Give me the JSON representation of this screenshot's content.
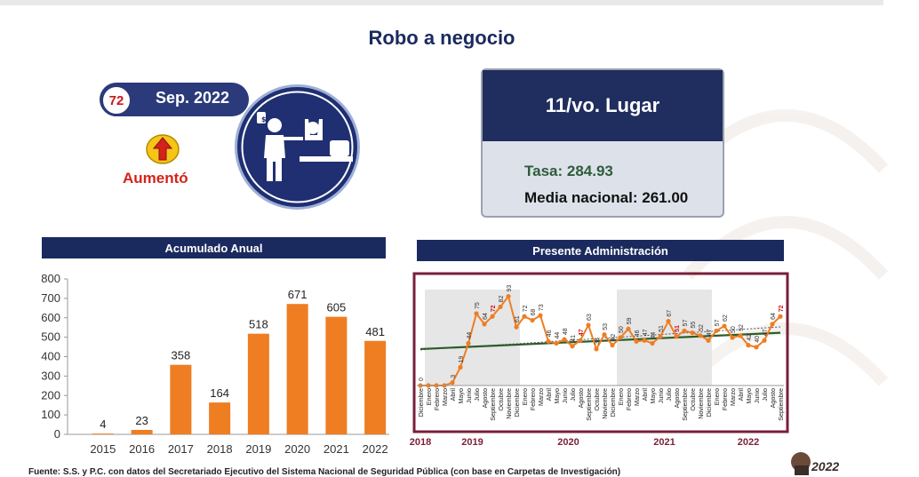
{
  "page": {
    "title": "Robo a negocio",
    "period_badge": {
      "rank_number": "72",
      "date_label": "Sep. 2022"
    },
    "trend_label": "Aumentó",
    "rank_card": {
      "position": "11/vo. Lugar",
      "rate": "Tasa: 284.93",
      "national_mean": "Media nacional: 261.00"
    },
    "footer": "Fuente: S.S. y P.C. con datos del Secretariado Ejecutivo del Sistema Nacional de Seguridad Pública (con base en Carpetas de Investigación)",
    "logo_text": "2022",
    "colors": {
      "navy": "#1b2a5e",
      "orange": "#ef7d22",
      "red": "#c8161d",
      "green": "#2e5c3a",
      "maroon": "#7a1f3a"
    }
  },
  "chart_data": [
    {
      "type": "bar",
      "title": "Acumulado Anual",
      "categories": [
        "2015",
        "2016",
        "2017",
        "2018",
        "2019",
        "2020",
        "2021",
        "2022"
      ],
      "values": [
        4,
        23,
        358,
        164,
        518,
        671,
        605,
        481
      ],
      "ylim": [
        0,
        800
      ],
      "yticks": [
        0,
        100,
        200,
        300,
        400,
        500,
        600,
        700,
        800
      ],
      "grid": false,
      "color": "#ef7d22"
    },
    {
      "type": "line",
      "title": "Presente Administración",
      "months": [
        "Diciembre",
        "Enero",
        "Febrero",
        "Marzo",
        "Abril",
        "Mayo",
        "Junio",
        "Julio",
        "Agosto",
        "Septiembre",
        "Octubre",
        "Noviembre",
        "Diciembre",
        "Enero",
        "Febrero",
        "Marzo",
        "Abril",
        "Mayo",
        "Junio",
        "Julio",
        "Agosto",
        "Septiembre",
        "Octubre",
        "Noviembre",
        "Diciembre",
        "Enero",
        "Febrero",
        "Marzo",
        "Abril",
        "Mayo",
        "Junio",
        "Julio",
        "Agosto",
        "Septiembre",
        "Octubre",
        "Noviembre",
        "Diciembre",
        "Enero",
        "Febrero",
        "Marzo",
        "Abril",
        "Mayo",
        "Junio",
        "Julio",
        "Agosto",
        "Septiembre"
      ],
      "values": [
        0,
        0,
        0,
        0,
        3,
        19,
        44,
        75,
        64,
        72,
        82,
        93,
        61,
        72,
        68,
        73,
        46,
        44,
        48,
        41,
        47,
        63,
        38,
        53,
        42,
        50,
        59,
        46,
        47,
        44,
        51,
        67,
        51,
        57,
        55,
        52,
        47,
        57,
        62,
        50,
        52,
        42,
        40,
        47,
        64,
        72
      ],
      "value_labels": [
        "0",
        "",
        "",
        "",
        "3",
        "19",
        "44",
        "75",
        "64",
        "72",
        "82",
        "93",
        "61",
        "72",
        "68",
        "73",
        "46",
        "44",
        "48",
        "41",
        "47",
        "63",
        "38",
        "53",
        "42",
        "50",
        "59",
        "46",
        "47",
        "44",
        "51",
        "67",
        "51",
        "57",
        "55",
        "52",
        "47",
        "57",
        "62",
        "50",
        "52",
        "42",
        "40",
        "47",
        "64",
        "72"
      ],
      "highlight_indices": [
        9,
        20,
        32,
        45
      ],
      "year_labels": [
        {
          "label": "2018",
          "start": 0,
          "end": 0
        },
        {
          "label": "2019",
          "start": 1,
          "end": 12
        },
        {
          "label": "2020",
          "start": 13,
          "end": 24
        },
        {
          "label": "2021",
          "start": 25,
          "end": 36
        },
        {
          "label": "2022",
          "start": 37,
          "end": 45
        }
      ],
      "shaded_years": [
        "2019",
        "2021"
      ],
      "ylim": [
        0,
        100
      ],
      "trend_lines": [
        "moving-average",
        "linear-trend"
      ],
      "colors": {
        "series": "#ef7d22",
        "trend": "#2e5c2a",
        "shade": "#e6e6e6",
        "border": "#7a1f3a"
      }
    }
  ]
}
